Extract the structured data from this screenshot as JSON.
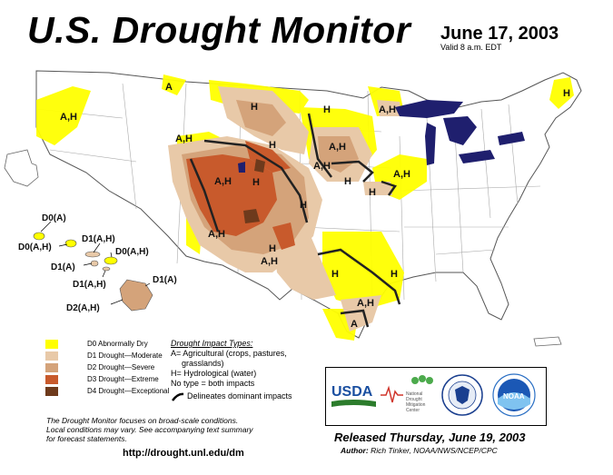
{
  "header": {
    "title": "U.S. Drought Monitor",
    "date": "June 17, 2003",
    "valid": "Valid 8 a.m. EDT"
  },
  "map_labels": {
    "wa": "A,H",
    "mt": "H",
    "nd": "H",
    "mn": "A,H",
    "me": "H",
    "nh": "A",
    "or": "A,H",
    "ne_mt": "H",
    "sd": "A,H",
    "ne": "A,H",
    "ia": "H",
    "ks": "H",
    "il": "A,H",
    "nv": "A,H",
    "ut": "H",
    "co": "H",
    "az": "A,H",
    "nm": "A,H",
    "ok": "H",
    "tx_n": "H",
    "tx_e": "H",
    "tx_coast": "A,H",
    "tx_s": "A"
  },
  "hawaii": {
    "kauai": "D0(A)",
    "oahu": "D0(A,H)",
    "molokai": "D1(A,H)",
    "maui": "D0(A,H)",
    "lanai": "D1(A)",
    "kahoolawe": "D1(A,H)",
    "big_island_n": "D1(A)",
    "big_island": "D2(A,H)"
  },
  "legend": {
    "items": [
      {
        "label": "D0 Abnormally Dry",
        "color": "#ffff00"
      },
      {
        "label": "D1 Drought—Moderate",
        "color": "#fcd37f"
      },
      {
        "label": "D2 Drought—Severe",
        "color": "#ffaa00"
      },
      {
        "label": "D3 Drought—Extreme",
        "color": "#e60000"
      },
      {
        "label": "D4 Drought—Exceptional",
        "color": "#730000"
      }
    ],
    "swatch_colors": [
      "#ffff00",
      "#e8c9a8",
      "#d4a37a",
      "#c85a2c",
      "#6e3a1c"
    ]
  },
  "impact": {
    "title": "Drought Impact Types:",
    "line1": "A= Agricultural (crops, pastures,",
    "line2": "grasslands)",
    "line3": "H= Hydrological (water)",
    "line4": "No type = both impacts",
    "line5": "Delineates dominant impacts"
  },
  "footer": {
    "focus1": "The Drought Monitor focuses on broad-scale conditions.",
    "focus2": "Local conditions may vary. See accompanying text summary",
    "focus3": "for forecast statements.",
    "url": "http://drought.unl.edu/dm",
    "released": "Released Thursday, June 19, 2003",
    "author_label": "Author:",
    "author": "Rich Tinker, NOAA/NWS/NCEP/CPC"
  },
  "logos": {
    "usda": "USDA",
    "ndmc1": "National",
    "ndmc2": "Drought",
    "ndmc3": "Mitigation",
    "ndmc4": "Center",
    "noaa": "NOAA"
  }
}
